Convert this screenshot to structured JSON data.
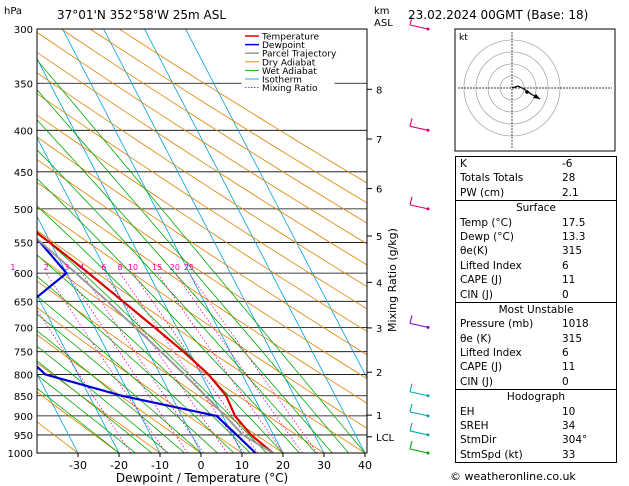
{
  "header": {
    "pressure_unit": "hPa",
    "location": "37°01'N  352°58'W  25m  ASL",
    "km_unit": "km",
    "asl_unit": "ASL",
    "datetime": "23.02.2024  00GMT  (Base: 18)"
  },
  "chart_data": {
    "type": "line",
    "xlabel": "Dewpoint / Temperature (°C)",
    "y2label": "Mixing Ratio (g/kg)",
    "pressure_levels": [
      300,
      350,
      400,
      450,
      500,
      550,
      600,
      650,
      700,
      750,
      800,
      850,
      900,
      950,
      1000
    ],
    "temp_ticks": [
      -30,
      -20,
      -10,
      0,
      10,
      20,
      30,
      40
    ],
    "xlim": [
      -40,
      40
    ],
    "ylim": [
      1000,
      300
    ],
    "km_ticks": [
      {
        "label": "8",
        "p": 356
      },
      {
        "label": "7",
        "p": 410
      },
      {
        "label": "6",
        "p": 472
      },
      {
        "label": "5",
        "p": 540
      },
      {
        "label": "4",
        "p": 616
      },
      {
        "label": "3",
        "p": 701
      },
      {
        "label": "2",
        "p": 795
      },
      {
        "label": "1",
        "p": 898
      },
      {
        "label": "LCL",
        "p": 955
      }
    ],
    "mixing_ratio_labels": [
      "1",
      "2",
      "3",
      "4",
      "6",
      "8",
      "10",
      "15",
      "20",
      "25"
    ],
    "mixing_ratio_values": [
      1,
      2,
      3,
      4,
      6,
      8,
      10,
      15,
      20,
      25
    ],
    "legend": [
      "Temperature",
      "Dewpoint",
      "Parcel Trajectory",
      "Dry Adiabat",
      "Wet Adiabat",
      "Isotherm",
      "Mixing Ratio"
    ],
    "colors": {
      "temperature": "#dd0000",
      "dewpoint": "#0000dd",
      "parcel": "#999999",
      "dry_adiabat": "#e08000",
      "wet_adiabat": "#00aa00",
      "isotherm": "#00a0e0",
      "mixing_ratio": "#ee00aa"
    },
    "series": [
      {
        "name": "Temperature",
        "p": [
          1000,
          950,
          900,
          850,
          800,
          750,
          700,
          650,
          600,
          550,
          500,
          450,
          400,
          350,
          300
        ],
        "t": [
          17.5,
          14.5,
          13.0,
          13.4,
          11.8,
          8.6,
          4.6,
          0.2,
          -4.6,
          -10.2,
          -16.8,
          -24.4,
          -32.6,
          -41.2,
          -50.0
        ]
      },
      {
        "name": "Dewpoint",
        "p": [
          1000,
          950,
          900,
          850,
          800,
          750,
          700,
          650,
          600,
          550,
          500,
          450,
          400,
          350,
          300
        ],
        "t": [
          13.3,
          11.0,
          8.5,
          -12.0,
          -28.0,
          -31.0,
          -33.0,
          -22.0,
          -10.0,
          -12.5,
          -18.5,
          -26.5,
          -35.0,
          -43.0,
          -58.0
        ]
      },
      {
        "name": "Parcel Trajectory",
        "p": [
          1000,
          950,
          900,
          850,
          800,
          750,
          700,
          650,
          600,
          550,
          500,
          450,
          400,
          350,
          300
        ],
        "t": [
          17.5,
          12.5,
          10.6,
          8.4,
          5.9,
          3.1,
          -0.1,
          -3.6,
          -7.7,
          -12.3,
          -17.9,
          -24.6,
          -32.5,
          -41.6,
          -51.5
        ]
      }
    ]
  },
  "hodograph": {
    "unit": "kt"
  },
  "indices": {
    "k_label": "K",
    "k_value": "-6",
    "tt_label": "Totals Totals",
    "tt_value": "28",
    "pw_label": "PW (cm)",
    "pw_value": "2.1"
  },
  "surface": {
    "title": "Surface",
    "temp_label": "Temp (°C)",
    "temp_value": "17.5",
    "dewp_label": "Dewp (°C)",
    "dewp_value": "13.3",
    "theta_label": "θe(K)",
    "theta_value": "315",
    "li_label": "Lifted Index",
    "li_value": "6",
    "cape_label": "CAPE (J)",
    "cape_value": "11",
    "cin_label": "CIN (J)",
    "cin_value": "0"
  },
  "most_unstable": {
    "title": "Most Unstable",
    "pressure_label": "Pressure (mb)",
    "pressure_value": "1018",
    "theta_label": "θe (K)",
    "theta_value": "315",
    "li_label": "Lifted Index",
    "li_value": "6",
    "cape_label": "CAPE (J)",
    "cape_value": "11",
    "cin_label": "CIN (J)",
    "cin_value": "0"
  },
  "hodo_table": {
    "title": "Hodograph",
    "eh_label": "EH",
    "eh_value": "10",
    "sreh_label": "SREH",
    "sreh_value": "34",
    "stmdir_label": "StmDir",
    "stmdir_value": "304°",
    "stmspd_label": "StmSpd (kt)",
    "stmspd_value": "33"
  },
  "footer": "© weatheronline.co.uk"
}
